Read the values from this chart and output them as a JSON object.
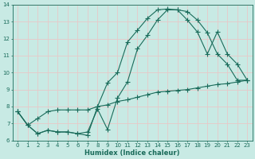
{
  "xlabel": "Humidex (Indice chaleur)",
  "xlim": [
    -0.5,
    23.5
  ],
  "ylim": [
    6,
    14
  ],
  "xticks": [
    0,
    1,
    2,
    3,
    4,
    5,
    6,
    7,
    8,
    9,
    10,
    11,
    12,
    13,
    14,
    15,
    16,
    17,
    18,
    19,
    20,
    21,
    22,
    23
  ],
  "yticks": [
    6,
    7,
    8,
    9,
    10,
    11,
    12,
    13,
    14
  ],
  "bg_color": "#c8eae4",
  "line_color": "#1a6b5a",
  "grid_color": "#e8c8c8",
  "line1_x": [
    0,
    1,
    2,
    3,
    4,
    5,
    6,
    7,
    8,
    9,
    10,
    11,
    12,
    13,
    14,
    15,
    16,
    17,
    18,
    19,
    20,
    21,
    22,
    23
  ],
  "line1_y": [
    7.7,
    6.9,
    6.4,
    6.6,
    6.5,
    6.5,
    6.4,
    6.3,
    8.0,
    9.4,
    10.0,
    11.8,
    12.5,
    13.2,
    13.7,
    13.75,
    13.7,
    13.1,
    12.4,
    11.1,
    12.4,
    11.1,
    10.5,
    9.55
  ],
  "line2_x": [
    0,
    1,
    2,
    3,
    4,
    5,
    6,
    7,
    8,
    9,
    10,
    11,
    12,
    13,
    14,
    15,
    16,
    17,
    18,
    19,
    20,
    21,
    22,
    23
  ],
  "line2_y": [
    7.7,
    6.9,
    6.4,
    6.6,
    6.5,
    6.5,
    6.4,
    6.5,
    7.85,
    6.65,
    8.5,
    9.45,
    11.4,
    12.2,
    13.1,
    13.7,
    13.7,
    13.6,
    13.1,
    12.35,
    11.1,
    10.5,
    9.55,
    9.55
  ],
  "line3_x": [
    0,
    1,
    2,
    3,
    4,
    5,
    6,
    7,
    8,
    9,
    10,
    11,
    12,
    13,
    14,
    15,
    16,
    17,
    18,
    19,
    20,
    21,
    22,
    23
  ],
  "line3_y": [
    7.7,
    6.9,
    7.3,
    7.7,
    7.8,
    7.8,
    7.8,
    7.8,
    8.0,
    8.1,
    8.3,
    8.4,
    8.55,
    8.7,
    8.85,
    8.9,
    8.95,
    9.0,
    9.1,
    9.2,
    9.3,
    9.35,
    9.45,
    9.55
  ]
}
